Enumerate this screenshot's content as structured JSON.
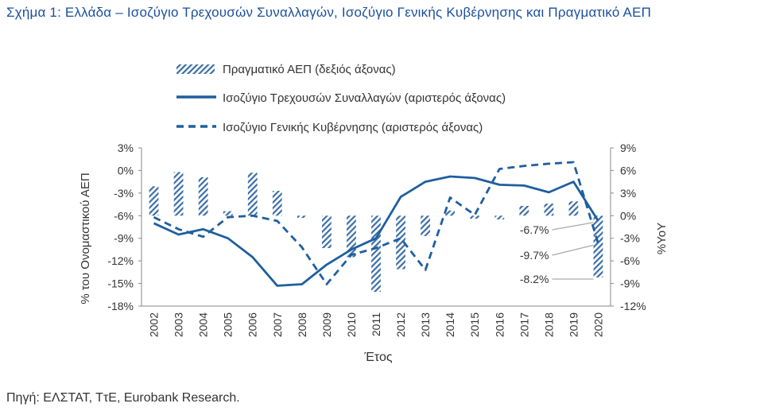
{
  "figure": {
    "title": "Σχήμα 1: Ελλάδα – Ισοζύγιο Τρεχουσών Συναλλαγών, Ισοζύγιο Γενικής Κυβέρνησης και Πραγματικό ΑΕΠ",
    "source": "Πηγή: ΕΛΣΤΑΤ, ΤτΕ, Eurobank Research."
  },
  "chart_data": {
    "type": "bar+line",
    "xlabel": "Έτος",
    "ylabel_left": "% του Ονομαστικού ΑΕΠ",
    "ylabel_right": "%YoY",
    "categories": [
      "2002",
      "2003",
      "2004",
      "2005",
      "2006",
      "2007",
      "2008",
      "2009",
      "2010",
      "2011",
      "2012",
      "2013",
      "2014",
      "2015",
      "2016",
      "2017",
      "2018",
      "2019",
      "2020"
    ],
    "left_axis": {
      "range": [
        -18,
        3
      ],
      "ticks": [
        "3%",
        "0%",
        "-3%",
        "-6%",
        "-9%",
        "-12%",
        "-15%",
        "-18%"
      ],
      "tick_values": [
        3,
        0,
        -3,
        -6,
        -9,
        -12,
        -15,
        -18
      ]
    },
    "right_axis": {
      "range": [
        -12,
        9
      ],
      "ticks": [
        "9%",
        "6%",
        "3%",
        "0%",
        "-3%",
        "-6%",
        "-9%",
        "-12%"
      ],
      "tick_values": [
        9,
        6,
        3,
        0,
        -3,
        -6,
        -9,
        -12
      ]
    },
    "series": [
      {
        "name": "Πραγματικό ΑΕΠ (δεξιός άξονας)",
        "kind": "bar",
        "axis": "right",
        "color": "#3b6ea5",
        "values": [
          3.9,
          5.8,
          5.1,
          0.6,
          5.7,
          3.3,
          -0.3,
          -4.3,
          -5.5,
          -10.1,
          -7.1,
          -2.7,
          0.7,
          -0.4,
          -0.5,
          1.3,
          1.6,
          1.9,
          -8.2
        ]
      },
      {
        "name": "Ισοζύγιο Τρεχουσών Συναλλαγών (αριστερός άξονας)",
        "kind": "line",
        "axis": "left",
        "color": "#1f5f9f",
        "values": [
          -7.0,
          -8.5,
          -7.8,
          -9.0,
          -11.5,
          -15.3,
          -15.1,
          -12.5,
          -10.5,
          -9.0,
          -3.5,
          -1.5,
          -0.8,
          -1.0,
          -1.9,
          -2.0,
          -2.9,
          -1.5,
          -6.7
        ]
      },
      {
        "name": "Ισοζύγιο Γενικής Κυβέρνησης (αριστερός άξονας)",
        "kind": "dashed-line",
        "axis": "left",
        "color": "#1f5f9f",
        "values": [
          -6.2,
          -7.8,
          -8.8,
          -6.2,
          -6.0,
          -6.7,
          -10.2,
          -15.1,
          -11.2,
          -10.3,
          -9.0,
          -13.2,
          -3.6,
          -5.9,
          0.2,
          0.6,
          0.9,
          1.1,
          -9.7
        ]
      }
    ],
    "annotations": [
      "-6.7%",
      "-9.7%",
      "-8.2%"
    ],
    "grid": false,
    "legend_position": "top"
  }
}
